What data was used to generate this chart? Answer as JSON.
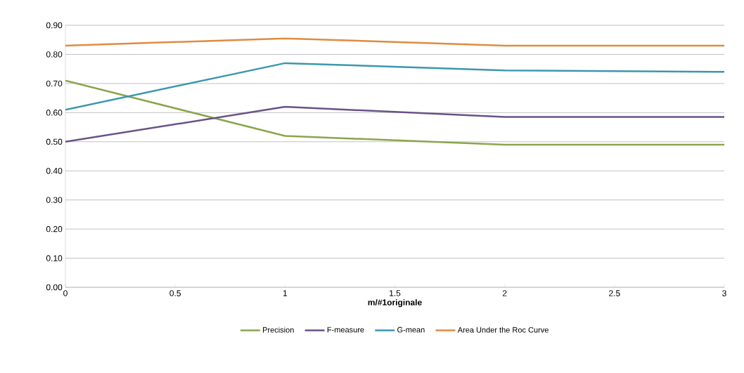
{
  "chart_data": {
    "type": "line",
    "xlabel": "m/#1originale",
    "x": [
      0,
      1,
      2,
      3
    ],
    "series": [
      {
        "name": "Precision",
        "color": "#8aa64b",
        "values": [
          0.71,
          0.52,
          0.49,
          0.49
        ]
      },
      {
        "name": "F-measure",
        "color": "#6a5288",
        "values": [
          0.5,
          0.62,
          0.585,
          0.585
        ]
      },
      {
        "name": "G-mean",
        "color": "#3b97ad",
        "values": [
          0.61,
          0.77,
          0.745,
          0.74
        ]
      },
      {
        "name": "Area Under the Roc Curve",
        "color": "#e08b3f",
        "values": [
          0.83,
          0.855,
          0.83,
          0.83
        ]
      }
    ],
    "xlim": [
      0,
      3
    ],
    "xticks": [
      0,
      0.5,
      1,
      1.5,
      2,
      2.5,
      3
    ],
    "ylim": [
      0,
      0.9
    ],
    "yticks": [
      {
        "value": 0,
        "label": "0.00"
      },
      {
        "value": 0.1,
        "label": "0.10"
      },
      {
        "value": 0.2,
        "label": "0.20"
      },
      {
        "value": 0.3,
        "label": "0.30"
      },
      {
        "value": 0.4,
        "label": "0.40"
      },
      {
        "value": 0.5,
        "label": "0.50"
      },
      {
        "value": 0.6,
        "label": "0.60"
      },
      {
        "value": 0.7,
        "label": "0.70"
      },
      {
        "value": 0.8,
        "label": "0.80"
      },
      {
        "value": 0.9,
        "label": "0.90"
      }
    ],
    "grid": "y",
    "legend": "bottom",
    "marker": "none",
    "line_style": "solid"
  }
}
